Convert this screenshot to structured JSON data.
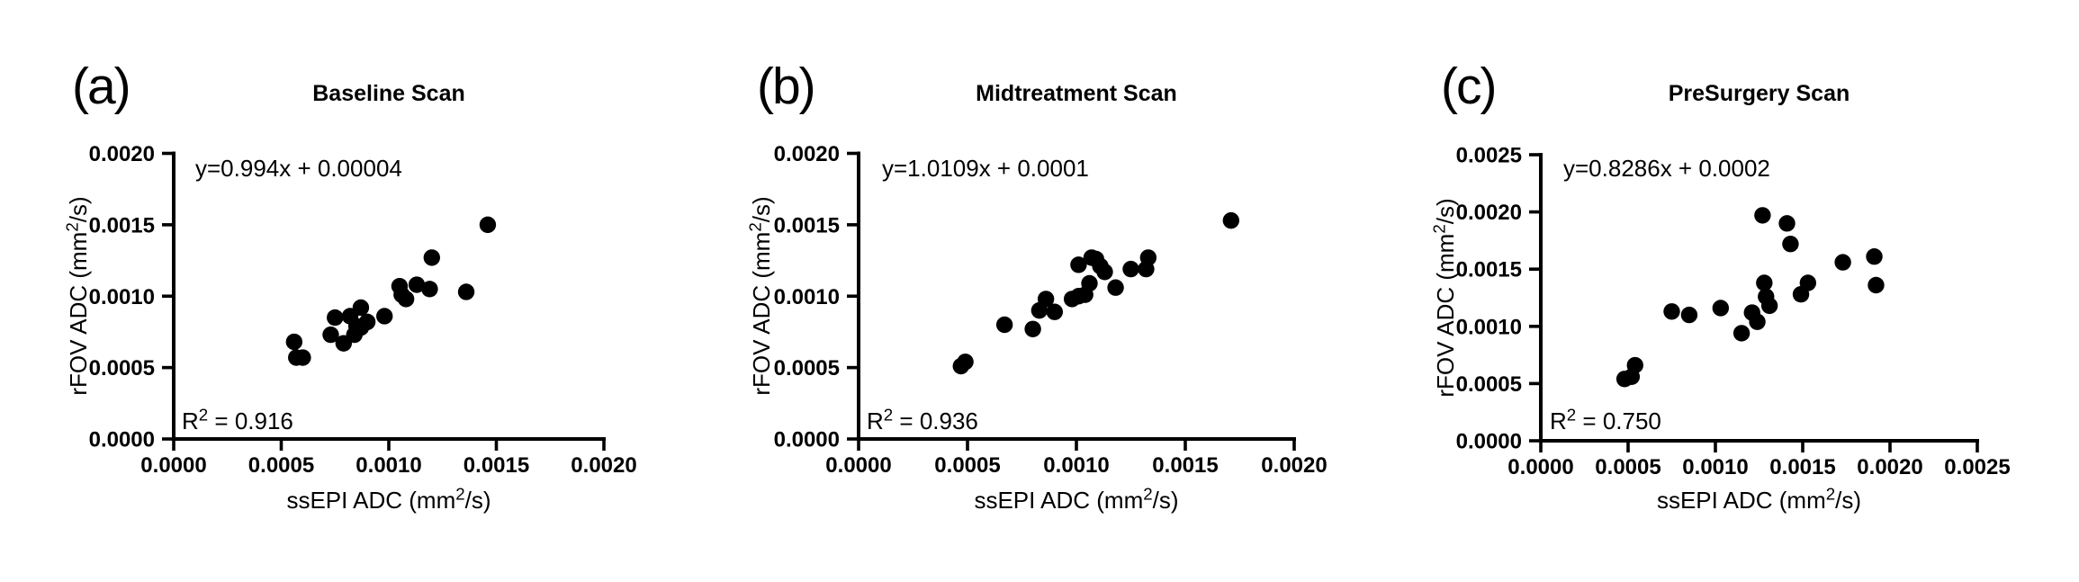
{
  "page": {
    "background": "#ffffff",
    "ink_color": "#000000"
  },
  "axis_labels": {
    "x_pre": "ssEPI ADC (mm",
    "x_sup": "2",
    "x_post": "/s)",
    "y_pre": "rFOV ADC (mm",
    "y_sup": "2",
    "y_post": "/s)"
  },
  "chart_data": [
    {
      "type": "scatter",
      "panel_label": "(a)",
      "title": "Baseline Scan",
      "equation": "y=0.994x + 0.00004",
      "r2_pre": "R",
      "r2_sup": "2",
      "r2_eq": " = ",
      "r_squared": "0.916",
      "xlabel": "ssEPI ADC (mm²/s)",
      "ylabel": "rFOV ADC (mm²/s)",
      "xlim": [
        0,
        0.002
      ],
      "ylim": [
        0,
        0.002
      ],
      "x_tick_labels": [
        "0.0000",
        "0.0005",
        "0.0010",
        "0.0015",
        "0.0020"
      ],
      "y_tick_labels": [
        "0.0000",
        "0.0005",
        "0.0010",
        "0.0015",
        "0.0020"
      ],
      "grid": false,
      "marker_color": "#000000",
      "points": [
        [
          0.00056,
          0.00068
        ],
        [
          0.00057,
          0.00057
        ],
        [
          0.0006,
          0.00057
        ],
        [
          0.00073,
          0.00073
        ],
        [
          0.00075,
          0.00085
        ],
        [
          0.00079,
          0.00067
        ],
        [
          0.00082,
          0.00086
        ],
        [
          0.00084,
          0.00073
        ],
        [
          0.00085,
          0.00079
        ],
        [
          0.00087,
          0.00078
        ],
        [
          0.00087,
          0.00092
        ],
        [
          0.0009,
          0.00082
        ],
        [
          0.00098,
          0.00086
        ],
        [
          0.00105,
          0.00107
        ],
        [
          0.00106,
          0.00101
        ],
        [
          0.00108,
          0.00098
        ],
        [
          0.00113,
          0.00108
        ],
        [
          0.00119,
          0.00105
        ],
        [
          0.0012,
          0.00127
        ],
        [
          0.00136,
          0.00103
        ],
        [
          0.00146,
          0.0015
        ]
      ]
    },
    {
      "type": "scatter",
      "panel_label": "(b)",
      "title": "Midtreatment Scan",
      "equation": "y=1.0109x + 0.0001",
      "r2_pre": "R",
      "r2_sup": "2",
      "r2_eq": " = ",
      "r_squared": "0.936",
      "xlabel": "ssEPI ADC (mm²/s)",
      "ylabel": "rFOV ADC (mm²/s)",
      "xlim": [
        0,
        0.002
      ],
      "ylim": [
        0,
        0.002
      ],
      "x_tick_labels": [
        "0.0000",
        "0.0005",
        "0.0010",
        "0.0015",
        "0.0020"
      ],
      "y_tick_labels": [
        "0.0000",
        "0.0005",
        "0.0010",
        "0.0015",
        "0.0020"
      ],
      "grid": false,
      "marker_color": "#000000",
      "points": [
        [
          0.00047,
          0.00051
        ],
        [
          0.00049,
          0.00054
        ],
        [
          0.00067,
          0.0008
        ],
        [
          0.0008,
          0.00077
        ],
        [
          0.00083,
          0.0009
        ],
        [
          0.00086,
          0.00098
        ],
        [
          0.0009,
          0.00089
        ],
        [
          0.00098,
          0.00098
        ],
        [
          0.00101,
          0.001
        ],
        [
          0.00101,
          0.00122
        ],
        [
          0.00104,
          0.00101
        ],
        [
          0.00106,
          0.00109
        ],
        [
          0.00107,
          0.00127
        ],
        [
          0.00109,
          0.00126
        ],
        [
          0.00111,
          0.00121
        ],
        [
          0.00113,
          0.00117
        ],
        [
          0.00118,
          0.00106
        ],
        [
          0.00125,
          0.00119
        ],
        [
          0.00132,
          0.00119
        ],
        [
          0.00133,
          0.00127
        ],
        [
          0.00171,
          0.00153
        ]
      ]
    },
    {
      "type": "scatter",
      "panel_label": "(c)",
      "title": "PreSurgery Scan",
      "equation": "y=0.8286x + 0.0002",
      "r2_pre": "R",
      "r2_sup": "2",
      "r2_eq": " = ",
      "r_squared": "0.750",
      "xlabel": "ssEPI ADC (mm²/s)",
      "ylabel": "rFOV ADC (mm²/s)",
      "xlim": [
        0,
        0.0025
      ],
      "ylim": [
        0,
        0.0025
      ],
      "x_tick_labels": [
        "0.0000",
        "0.0005",
        "0.0010",
        "0.0015",
        "0.0020",
        "0.0025"
      ],
      "y_tick_labels": [
        "0.0000",
        "0.0005",
        "0.0010",
        "0.0015",
        "0.0020",
        "0.0025"
      ],
      "grid": false,
      "marker_color": "#000000",
      "points": [
        [
          0.00048,
          0.00054
        ],
        [
          0.00052,
          0.00056
        ],
        [
          0.00054,
          0.00066
        ],
        [
          0.00075,
          0.00113
        ],
        [
          0.00085,
          0.0011
        ],
        [
          0.00103,
          0.00116
        ],
        [
          0.00115,
          0.00094
        ],
        [
          0.00121,
          0.00112
        ],
        [
          0.00124,
          0.00104
        ],
        [
          0.00127,
          0.00197
        ],
        [
          0.00128,
          0.00138
        ],
        [
          0.00129,
          0.00126
        ],
        [
          0.00131,
          0.00118
        ],
        [
          0.00141,
          0.0019
        ],
        [
          0.00143,
          0.00172
        ],
        [
          0.00149,
          0.00128
        ],
        [
          0.00153,
          0.00138
        ],
        [
          0.00173,
          0.00156
        ],
        [
          0.00191,
          0.00161
        ],
        [
          0.00192,
          0.00136
        ]
      ]
    }
  ]
}
